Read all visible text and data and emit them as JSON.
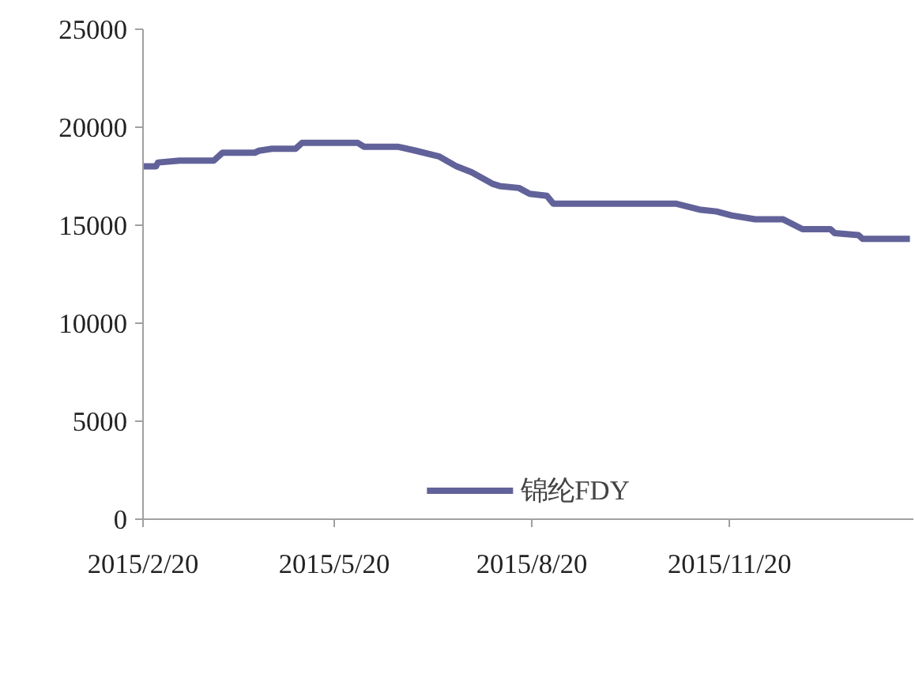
{
  "chart_data": {
    "type": "line",
    "x": [
      "2015-02-20",
      "2015-02-26",
      "2015-02-27",
      "2015-03-09",
      "2015-03-25",
      "2015-03-29",
      "2015-04-13",
      "2015-04-15",
      "2015-04-21",
      "2015-05-02",
      "2015-05-05",
      "2015-05-31",
      "2015-06-03",
      "2015-06-19",
      "2015-06-27",
      "2015-07-08",
      "2015-07-16",
      "2015-07-23",
      "2015-08-02",
      "2015-08-05",
      "2015-08-14",
      "2015-08-19",
      "2015-08-27",
      "2015-08-30",
      "2015-10-26",
      "2015-11-06",
      "2015-11-14",
      "2015-11-21",
      "2015-12-02",
      "2015-12-15",
      "2015-12-24",
      "2016-01-06",
      "2016-01-08",
      "2016-01-19",
      "2016-01-21",
      "2016-02-12"
    ],
    "series": [
      {
        "name": "锦纶FDY",
        "color": "#62629a",
        "values": [
          18000,
          18000,
          18200,
          18300,
          18300,
          18700,
          18700,
          18800,
          18900,
          18900,
          19200,
          19200,
          19000,
          19000,
          18800,
          18500,
          18000,
          17700,
          17100,
          17000,
          16900,
          16600,
          16500,
          16100,
          16100,
          15800,
          15700,
          15500,
          15300,
          15300,
          14800,
          14800,
          14600,
          14500,
          14300,
          14300
        ]
      }
    ],
    "xlim": [
      "2015-02-20",
      "2016-02-14"
    ],
    "xticks": [
      {
        "value": "2015-02-20",
        "label": "2015/2/20"
      },
      {
        "value": "2015-05-20",
        "label": "2015/5/20"
      },
      {
        "value": "2015-08-20",
        "label": "2015/8/20"
      },
      {
        "value": "2015-11-20",
        "label": "2015/11/20"
      }
    ],
    "ylim": [
      0,
      25000
    ],
    "yticks": [
      0,
      5000,
      10000,
      15000,
      20000,
      25000
    ],
    "legend": "bottom",
    "line_style": "solid",
    "marker": "none"
  }
}
